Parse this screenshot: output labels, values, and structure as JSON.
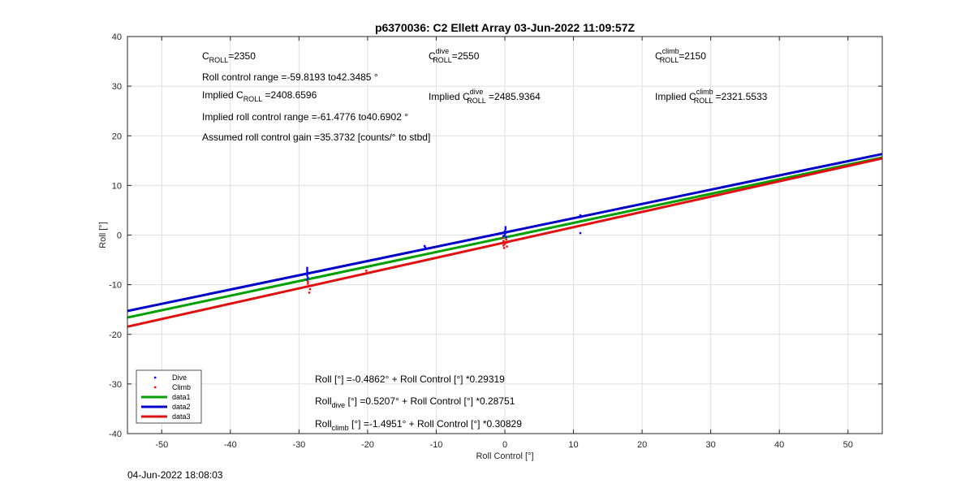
{
  "chart_data": {
    "type": "scatter",
    "title": "p6370036: C2 Ellett Array 03-Jun-2022 11:09:57Z",
    "xlabel": "Roll Control [°]",
    "ylabel": "Roll [°]",
    "xlim": [
      -55,
      55
    ],
    "ylim": [
      -40,
      40
    ],
    "xticks": [
      -50,
      -40,
      -30,
      -20,
      -10,
      0,
      10,
      20,
      30,
      40,
      50
    ],
    "yticks": [
      -40,
      -30,
      -20,
      -10,
      0,
      10,
      20,
      30,
      40
    ],
    "grid": true,
    "legend_position": "bottom-left",
    "series": [
      {
        "name": "Dive",
        "kind": "points",
        "color": "#0000ff",
        "points": [
          [
            -28.8,
            -6.6
          ],
          [
            -28.8,
            -7.0
          ],
          [
            -28.8,
            -7.4
          ],
          [
            -28.9,
            -7.8
          ],
          [
            -28.8,
            -8.2
          ],
          [
            -28.7,
            -8.6
          ],
          [
            -28.8,
            -9.0
          ],
          [
            -11.7,
            -2.2
          ],
          [
            -11.6,
            -2.5
          ],
          [
            -11.7,
            -2.8
          ],
          [
            0.1,
            1.6
          ],
          [
            0.1,
            1.2
          ],
          [
            0.0,
            0.8
          ],
          [
            0.1,
            0.4
          ],
          [
            0.0,
            0.0
          ],
          [
            -0.2,
            -0.2
          ],
          [
            0.2,
            -0.4
          ],
          [
            11.0,
            4.0
          ],
          [
            11.0,
            3.6
          ],
          [
            11.0,
            0.4
          ]
        ]
      },
      {
        "name": "Climb",
        "kind": "points",
        "color": "#ff0000",
        "points": [
          [
            -28.7,
            -9.4
          ],
          [
            -28.7,
            -9.8
          ],
          [
            -28.5,
            -10.3
          ],
          [
            -28.4,
            -10.9
          ],
          [
            -28.5,
            -11.6
          ],
          [
            -20.2,
            -7.2
          ],
          [
            -0.4,
            -0.6
          ],
          [
            0.2,
            -0.9
          ],
          [
            -0.2,
            -1.2
          ],
          [
            0.3,
            -1.5
          ],
          [
            0.0,
            -1.8
          ],
          [
            -0.2,
            -2.1
          ],
          [
            0.3,
            -2.3
          ],
          [
            -0.1,
            -2.6
          ]
        ]
      },
      {
        "name": "data1",
        "kind": "fit",
        "color": "#00a000",
        "intercept": -0.4862,
        "slope": 0.29319
      },
      {
        "name": "data2",
        "kind": "fit",
        "color": "#0000c8",
        "intercept": 0.5207,
        "slope": 0.28751
      },
      {
        "name": "data3",
        "kind": "fit",
        "color": "#e01010",
        "intercept": -1.4951,
        "slope": 0.30829
      }
    ]
  },
  "annotations": {
    "c_roll": {
      "base": "C",
      "sub": "ROLL",
      "rest": "=2350"
    },
    "c_roll_dive": {
      "base": "C",
      "sup": "dive",
      "sub": "ROLL",
      "rest": "=2550"
    },
    "c_roll_climb": {
      "base": "C",
      "sup": "climb",
      "sub": "ROLL",
      "rest": "=2150"
    },
    "roll_control_range": "Roll control range =-59.8193 to42.3485 °",
    "implied_c_roll": {
      "base": "Implied C",
      "sub": "ROLL",
      "rest": " =2408.6596"
    },
    "implied_c_roll_dive": {
      "base": "Implied C",
      "sup": "dive",
      "sub": "ROLL",
      "rest": " =2485.9364"
    },
    "implied_c_roll_climb": {
      "base": "Implied C",
      "sup": "climb",
      "sub": "ROLL",
      "rest": " =2321.5533"
    },
    "implied_range": "Implied roll control range =-61.4776 to40.6902 °",
    "assumed_gain": "Assumed roll control gain =35.3732 [counts/° to stbd]",
    "eq_all": "Roll [°] =-0.4862° + Roll Control [°] *0.29319",
    "eq_dive": {
      "base": "Roll",
      "sub": "dive",
      "rest": " [°] =0.5207° + Roll Control [°] *0.28751"
    },
    "eq_climb": {
      "base": "Roll",
      "sub": "climb",
      "rest": " [°] =-1.4951° + Roll Control [°] *0.30829"
    }
  },
  "footer_timestamp": "04-Jun-2022 18:08:03"
}
